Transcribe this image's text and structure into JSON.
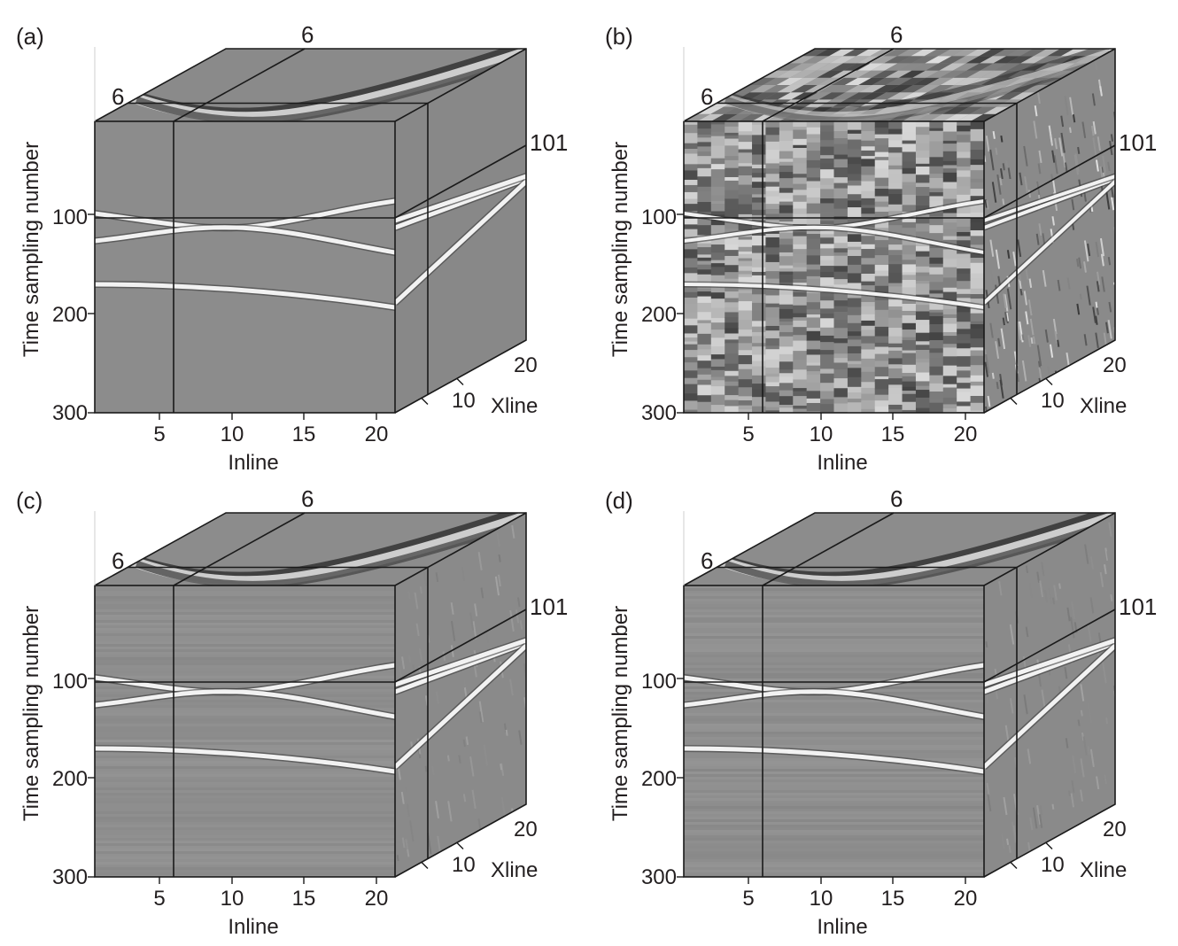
{
  "figure": {
    "panels": [
      {
        "label": "(a)",
        "noise": "none"
      },
      {
        "label": "(b)",
        "noise": "heavy"
      },
      {
        "label": "(c)",
        "noise": "light"
      },
      {
        "label": "(d)",
        "noise": "light"
      }
    ],
    "slice_labels": {
      "inline": "6",
      "xline": "6",
      "time": "101"
    },
    "axes": {
      "time_label": "Time sampling number",
      "time_ticks": [
        "100",
        "200",
        "300"
      ],
      "inline_label": "Inline",
      "inline_ticks": [
        "5",
        "10",
        "15",
        "20"
      ],
      "xline_label": "Xline",
      "xline_ticks": [
        "10",
        "20"
      ]
    },
    "colors": {
      "background": "#8a8a8a",
      "event": "#f2f2f2",
      "frame": "#1a1a1a"
    }
  }
}
